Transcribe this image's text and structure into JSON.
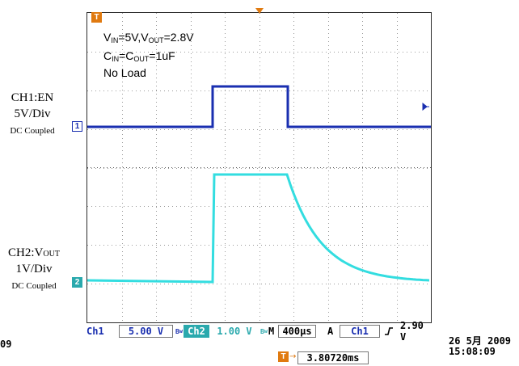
{
  "annotation": {
    "line1": {
      "v1": "V",
      "s1": "IN",
      "m1": "=5V,V",
      "s2": "OUT",
      "m2": "=2.8V"
    },
    "line2": {
      "c1": "C",
      "s1": "IN",
      "m1": "=C",
      "s2": "OUT",
      "m2": "=1uF"
    },
    "line3": "No Load"
  },
  "ch1": {
    "name": "CH1:EN",
    "scale": "5V/Div",
    "coupling": "DC Coupled",
    "marker": "1",
    "color": "#1a2fb0"
  },
  "ch2": {
    "name_prefix": "CH2:V",
    "name_sub": "OUT",
    "scale": "1V/Div",
    "coupling": "DC Coupled",
    "marker": "2",
    "color": "#33dde0"
  },
  "trigger_marker": "T",
  "status": {
    "ch1_label": "Ch1",
    "ch1_scale": "5.00 V",
    "ch2_icon": "bw-icon",
    "ch2_label": "Ch2",
    "ch2_scale": "1.00 V",
    "timebase_prefix": "M",
    "timebase": "400µs",
    "trig_mode": "A",
    "trig_source": "Ch1",
    "trig_slope_icon": "rising-edge-icon",
    "trig_level": "2.90 V",
    "date": "26 5月 2009",
    "time": "15:08:09",
    "trigger_position": "3.80720ms",
    "left_clip": "09"
  }
}
